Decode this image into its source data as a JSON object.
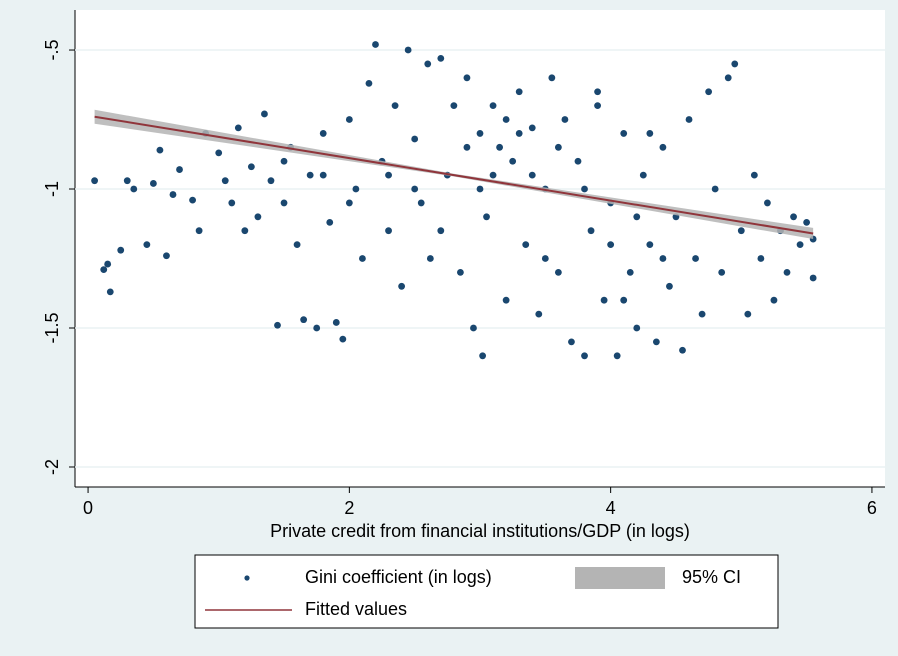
{
  "chart_data": {
    "type": "scatter",
    "x_label": "Private credit from financial institutions/GDP (in logs)",
    "xlim": [
      -0.1,
      6.1
    ],
    "ylim": [
      -2.072,
      -0.356
    ],
    "xticks": [
      0,
      2,
      4,
      6
    ],
    "yticks": [
      {
        "value": -0.5,
        "label": "-.5"
      },
      -1,
      -1.5,
      -2
    ],
    "grid": true,
    "series": [
      {
        "name": "Gini coefficient (in logs)",
        "mark": "scatter",
        "color": "#1a476f",
        "x": [
          0.05,
          0.12,
          0.15,
          0.17,
          0.25,
          0.3,
          0.35,
          0.45,
          0.5,
          0.55,
          0.6,
          0.65,
          0.7,
          0.8,
          0.85,
          0.9,
          1.0,
          1.05,
          1.1,
          1.15,
          1.2,
          1.25,
          1.3,
          1.35,
          1.4,
          1.45,
          1.5,
          1.55,
          1.6,
          1.65,
          1.7,
          1.75,
          1.8,
          1.85,
          1.9,
          1.95,
          2.0,
          2.05,
          2.1,
          2.15,
          2.2,
          2.25,
          2.3,
          2.35,
          2.4,
          2.45,
          2.5,
          2.55,
          2.6,
          2.62,
          2.7,
          2.75,
          2.8,
          2.85,
          2.9,
          2.95,
          3.0,
          3.02,
          3.05,
          3.1,
          3.15,
          3.2,
          3.25,
          3.3,
          3.35,
          3.4,
          3.45,
          3.5,
          3.55,
          3.6,
          3.65,
          3.7,
          3.75,
          3.8,
          3.85,
          3.9,
          3.95,
          4.0,
          4.05,
          4.1,
          4.15,
          4.2,
          4.25,
          4.3,
          4.35,
          4.4,
          4.45,
          4.5,
          4.55,
          4.6,
          4.65,
          4.7,
          4.75,
          4.8,
          4.85,
          4.9,
          4.95,
          5.0,
          5.05,
          5.1,
          5.15,
          5.2,
          5.25,
          5.3,
          5.35,
          5.4,
          5.45,
          5.5,
          5.55,
          5.55,
          3.2,
          3.3,
          3.1,
          2.9,
          3.4,
          3.6,
          3.8,
          4.0,
          4.2,
          4.4,
          2.5,
          2.7,
          3.0,
          3.5,
          3.9,
          4.1,
          4.3,
          2.3,
          2.0,
          1.8,
          1.5
        ],
        "values": [
          -0.97,
          -1.29,
          -1.27,
          -1.37,
          -1.22,
          -0.97,
          -1.0,
          -1.2,
          -0.98,
          -0.86,
          -1.24,
          -1.02,
          -0.93,
          -1.04,
          -1.15,
          -0.8,
          -0.87,
          -0.97,
          -1.05,
          -0.78,
          -1.15,
          -0.92,
          -1.1,
          -0.73,
          -0.97,
          -1.49,
          -1.05,
          -0.85,
          -1.2,
          -1.47,
          -0.95,
          -1.5,
          -0.8,
          -1.12,
          -1.48,
          -1.54,
          -0.75,
          -1.0,
          -1.25,
          -0.62,
          -0.48,
          -0.9,
          -1.15,
          -0.7,
          -1.35,
          -0.5,
          -0.82,
          -1.05,
          -0.55,
          -1.25,
          -0.53,
          -0.95,
          -0.7,
          -1.3,
          -0.6,
          -1.5,
          -0.8,
          -1.6,
          -1.1,
          -0.7,
          -0.85,
          -1.4,
          -0.9,
          -0.65,
          -1.2,
          -0.78,
          -1.45,
          -1.0,
          -0.6,
          -1.3,
          -0.75,
          -1.55,
          -0.9,
          -1.6,
          -1.15,
          -0.7,
          -1.4,
          -1.05,
          -1.6,
          -0.8,
          -1.3,
          -1.5,
          -0.95,
          -1.2,
          -1.55,
          -0.85,
          -1.35,
          -1.1,
          -1.58,
          -0.75,
          -1.25,
          -1.45,
          -0.65,
          -1.0,
          -1.3,
          -0.6,
          -0.55,
          -1.15,
          -1.45,
          -0.95,
          -1.25,
          -1.05,
          -1.4,
          -1.15,
          -1.3,
          -1.1,
          -1.2,
          -1.12,
          -1.32,
          -1.18,
          -0.75,
          -0.8,
          -0.95,
          -0.85,
          -0.95,
          -0.85,
          -1.0,
          -1.2,
          -1.1,
          -1.25,
          -1.0,
          -1.15,
          -1.0,
          -1.25,
          -0.65,
          -1.4,
          -0.8,
          -0.95,
          -1.05,
          -0.95,
          -0.9
        ]
      },
      {
        "name": "95% CI",
        "mark": "band",
        "color": "#b4b4b4",
        "x": [
          0.05,
          2.8,
          5.55
        ],
        "lower": [
          -0.765,
          -0.955,
          -1.18
        ],
        "upper": [
          -0.715,
          -0.945,
          -1.14
        ]
      },
      {
        "name": "Fitted values",
        "mark": "line",
        "color": "#90353b",
        "x": [
          0.05,
          2.8,
          5.55
        ],
        "values": [
          -0.74,
          -0.95,
          -1.16
        ]
      }
    ]
  }
}
